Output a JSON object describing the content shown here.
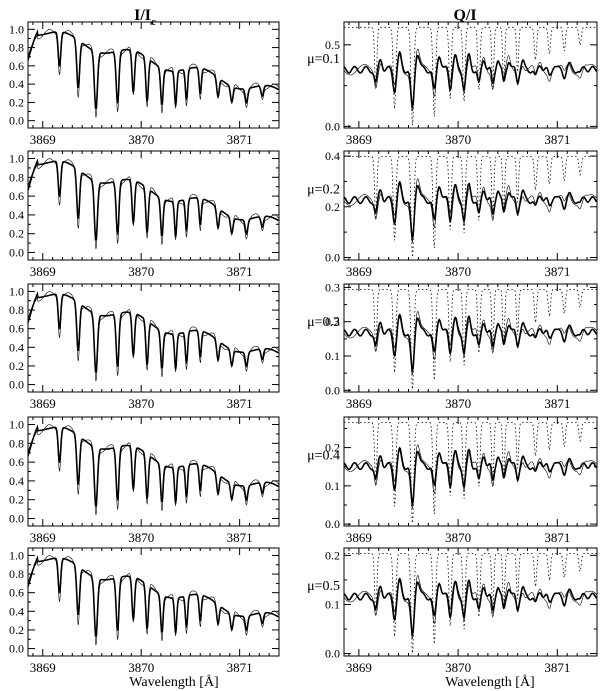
{
  "figure": {
    "column_titles": {
      "left": "I/I",
      "left_sub": "c",
      "right": "Q/I"
    },
    "xlabel": "Wavelength [Å]"
  },
  "chart_data": [
    {
      "type": "line",
      "panel": "I/Ic",
      "row": 1,
      "xlim": [
        3868.85,
        3871.4
      ],
      "ylim": [
        -0.08,
        1.08
      ],
      "xticks": [
        "3869",
        "3870",
        "3871"
      ],
      "yticks": [
        "0.0",
        "0.2",
        "0.4",
        "0.6",
        "0.8",
        "1.0"
      ],
      "series": []
    },
    {
      "type": "line",
      "panel": "Q/I",
      "row": 1,
      "annotation": "μ=0.1",
      "xlim": [
        3868.85,
        3871.4
      ],
      "ylim": [
        -0.01,
        0.64
      ],
      "xticks": [
        "3869",
        "3870",
        "3871"
      ],
      "yticks": [
        "0.0",
        "0.5"
      ],
      "series": []
    },
    {
      "type": "line",
      "panel": "I/Ic",
      "row": 2,
      "xlim": [
        3868.85,
        3871.4
      ],
      "ylim": [
        -0.08,
        1.08
      ],
      "xticks": [
        "3869",
        "3870",
        "3871"
      ],
      "yticks": [
        "0.0",
        "0.2",
        "0.4",
        "0.6",
        "0.8",
        "1.0"
      ],
      "series": []
    },
    {
      "type": "line",
      "panel": "Q/I",
      "row": 2,
      "annotation": "μ=0.2",
      "xlim": [
        3868.85,
        3871.4
      ],
      "ylim": [
        -0.01,
        0.42
      ],
      "xticks": [
        "3869",
        "3870",
        "3871"
      ],
      "yticks": [
        "0.0",
        "0.2",
        "0.4"
      ],
      "series": []
    },
    {
      "type": "line",
      "panel": "I/Ic",
      "row": 3,
      "xlim": [
        3868.85,
        3871.4
      ],
      "ylim": [
        -0.08,
        1.08
      ],
      "xticks": [
        "3869",
        "3870",
        "3871"
      ],
      "yticks": [
        "0.0",
        "0.2",
        "0.4",
        "0.6",
        "0.8",
        "1.0"
      ],
      "series": []
    },
    {
      "type": "line",
      "panel": "Q/I",
      "row": 3,
      "annotation": "μ=0.3",
      "xlim": [
        3868.85,
        3871.4
      ],
      "ylim": [
        -0.005,
        0.31
      ],
      "xticks": [
        "3869",
        "3870",
        "3871"
      ],
      "yticks": [
        "0.0",
        "0.1",
        "0.2",
        "0.3"
      ],
      "series": []
    },
    {
      "type": "line",
      "panel": "I/Ic",
      "row": 4,
      "xlim": [
        3868.85,
        3871.4
      ],
      "ylim": [
        -0.08,
        1.08
      ],
      "xticks": [
        "3869",
        "3870",
        "3871"
      ],
      "yticks": [
        "0.0",
        "0.2",
        "0.4",
        "0.6",
        "0.8",
        "1.0"
      ],
      "series": []
    },
    {
      "type": "line",
      "panel": "Q/I",
      "row": 4,
      "annotation": "μ=0.4",
      "xlim": [
        3868.85,
        3871.4
      ],
      "ylim": [
        -0.005,
        0.28
      ],
      "xticks": [
        "3869",
        "3870",
        "3871"
      ],
      "yticks": [
        "0.0",
        "0.1",
        "0.2"
      ],
      "series": []
    },
    {
      "type": "line",
      "panel": "I/Ic",
      "row": 5,
      "xlim": [
        3868.85,
        3871.4
      ],
      "ylim": [
        -0.08,
        1.08
      ],
      "xticks": [
        "3869",
        "3870",
        "3871"
      ],
      "yticks": [
        "0.0",
        "0.2",
        "0.4",
        "0.6",
        "0.8",
        "1.0"
      ],
      "series": []
    },
    {
      "type": "line",
      "panel": "Q/I",
      "row": 5,
      "annotation": "μ=0.5",
      "xlim": [
        3868.85,
        3871.4
      ],
      "ylim": [
        -0.005,
        0.215
      ],
      "xticks": [
        "3869",
        "3870",
        "3871"
      ],
      "yticks": [
        "0.0",
        "0.1",
        "0.2"
      ],
      "series": []
    }
  ]
}
